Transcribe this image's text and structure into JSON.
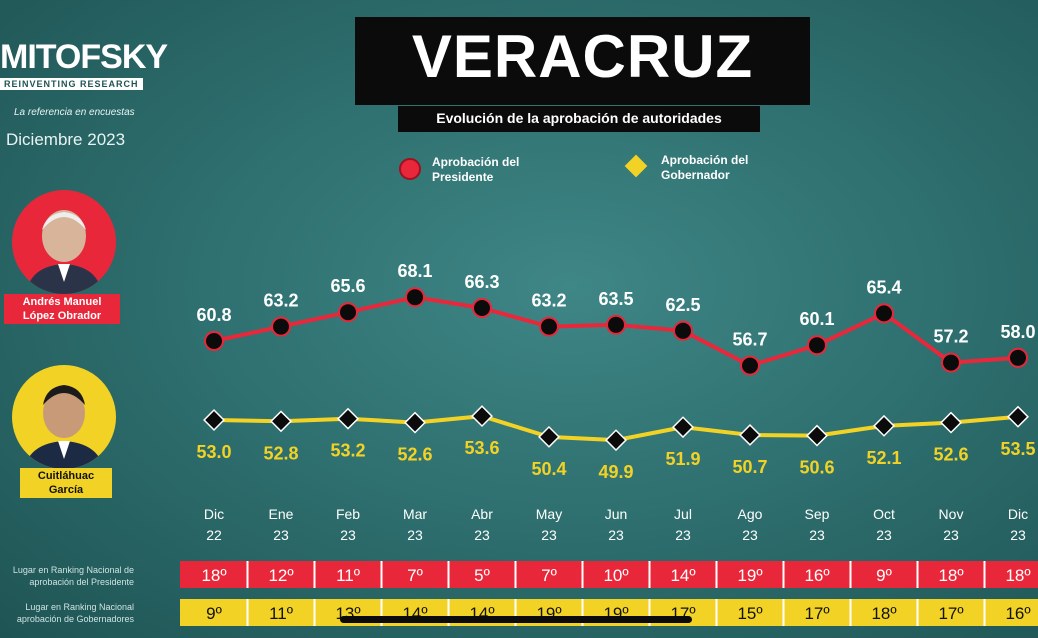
{
  "brand": {
    "name": "MITOFSKY",
    "slogan_bar": "REINVENTING RESEARCH",
    "tagline": "La referencia en encuestas",
    "date": "Diciembre 2023"
  },
  "header": {
    "title": "VERACRUZ",
    "subtitle": "Evolución de la aprobación de autoridades"
  },
  "people": {
    "president": "Andrés Manuel López Obrador",
    "governor": "Cuitláhuac García"
  },
  "rank_labels": {
    "president": "Lugar en Ranking Nacional de aprobación del Presidente",
    "governor": "Lugar en Ranking Nacional aprobación de Gobernadores"
  },
  "colors": {
    "president": "#e8283a",
    "governor": "#f2d325",
    "marker": "#0b0b0b",
    "background": "#2f7070"
  },
  "chart_data": {
    "type": "line",
    "title": "VERACRUZ",
    "subtitle": "Evolución de la aprobación de autoridades",
    "categories": [
      {
        "month": "Dic",
        "year": "22"
      },
      {
        "month": "Ene",
        "year": "23"
      },
      {
        "month": "Feb",
        "year": "23"
      },
      {
        "month": "Mar",
        "year": "23"
      },
      {
        "month": "Abr",
        "year": "23"
      },
      {
        "month": "May",
        "year": "23"
      },
      {
        "month": "Jun",
        "year": "23"
      },
      {
        "month": "Jul",
        "year": "23"
      },
      {
        "month": "Ago",
        "year": "23"
      },
      {
        "month": "Sep",
        "year": "23"
      },
      {
        "month": "Oct",
        "year": "23"
      },
      {
        "month": "Nov",
        "year": "23"
      },
      {
        "month": "Dic",
        "year": "23"
      }
    ],
    "series": [
      {
        "name": "Aprobación del Presidente",
        "marker": "circle",
        "values": [
          60.8,
          63.2,
          65.6,
          68.1,
          66.3,
          63.2,
          63.5,
          62.5,
          56.7,
          60.1,
          65.4,
          57.2,
          58.0
        ],
        "labels": [
          "60.8",
          "63.2",
          "65.6",
          "68.1",
          "66.3",
          "63.2",
          "63.5",
          "62.5",
          "56.7",
          "60.1",
          "65.4",
          "57.2",
          "58.0"
        ],
        "ranking": [
          "18º",
          "12º",
          "11º",
          "7º",
          "5º",
          "7º",
          "10º",
          "14º",
          "19º",
          "16º",
          "9º",
          "18º",
          "18º"
        ]
      },
      {
        "name": "Aprobación del Gobernador",
        "marker": "diamond",
        "values": [
          53.0,
          52.8,
          53.2,
          52.6,
          53.6,
          50.4,
          49.9,
          51.9,
          50.7,
          50.6,
          52.1,
          52.6,
          53.5
        ],
        "labels": [
          "53.0",
          "52.8",
          "53.2",
          "52.6",
          "53.6",
          "50.4",
          "49.9",
          "51.9",
          "50.7",
          "50.6",
          "52.1",
          "52.6",
          "53.5"
        ],
        "ranking": [
          "9º",
          "11º",
          "13º",
          "14º",
          "14º",
          "19º",
          "19º",
          "17º",
          "15º",
          "17º",
          "18º",
          "17º",
          "16º"
        ]
      }
    ],
    "legend": "top",
    "grid": false
  }
}
